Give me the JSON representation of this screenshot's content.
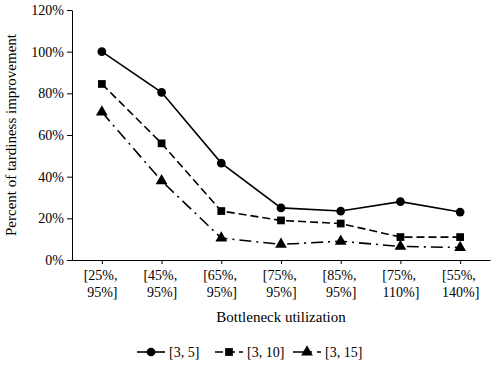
{
  "chart_data": {
    "type": "line",
    "categories": [
      "[25%, 95%]",
      "[45%, 95%]",
      "[65%, 95%]",
      "[75%, 95%]",
      "[85%, 95%]",
      "[75%, 110%]",
      "[55%, 140%]"
    ],
    "x_label": "Bottleneck utilization",
    "y_label": "Percent of tardiness improvement",
    "series": [
      {
        "name": "[3, 5]",
        "color": "#000000",
        "marker": "circle",
        "line_style": "solid",
        "values": [
          100,
          80.5,
          46.5,
          25,
          23.5,
          28,
          23
        ]
      },
      {
        "name": "[3, 10]",
        "color": "#000000",
        "marker": "square",
        "line_style": "dashed",
        "values": [
          84.5,
          56,
          23.5,
          19,
          17.5,
          11,
          11
        ]
      },
      {
        "name": "[3, 15]",
        "color": "#000000",
        "marker": "triangle",
        "line_style": "dashdot",
        "values": [
          71,
          38,
          10.5,
          7.5,
          9,
          6.5,
          6
        ]
      }
    ],
    "ylim": [
      0,
      120
    ],
    "yticks": [
      {
        "value": 0,
        "label": "0%"
      },
      {
        "value": 20,
        "label": "20%"
      },
      {
        "value": 40,
        "label": "40%"
      },
      {
        "value": 60,
        "label": "60%"
      },
      {
        "value": 80,
        "label": "80%"
      },
      {
        "value": 100,
        "label": "100%"
      },
      {
        "value": 120,
        "label": "120%"
      }
    ],
    "grid": false,
    "legend": "bottom"
  }
}
